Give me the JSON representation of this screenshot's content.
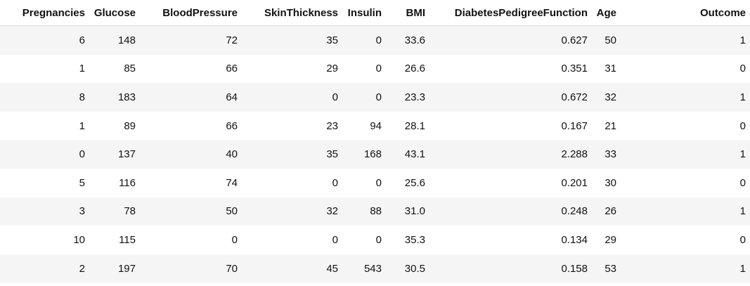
{
  "table": {
    "columns": [
      "Pregnancies",
      "Glucose",
      "BloodPressure",
      "SkinThickness",
      "Insulin",
      "BMI",
      "DiabetesPedigreeFunction",
      "Age",
      "Outcome"
    ],
    "rows": [
      [
        "6",
        "148",
        "72",
        "35",
        "0",
        "33.6",
        "0.627",
        "50",
        "1"
      ],
      [
        "1",
        "85",
        "66",
        "29",
        "0",
        "26.6",
        "0.351",
        "31",
        "0"
      ],
      [
        "8",
        "183",
        "64",
        "0",
        "0",
        "23.3",
        "0.672",
        "32",
        "1"
      ],
      [
        "1",
        "89",
        "66",
        "23",
        "94",
        "28.1",
        "0.167",
        "21",
        "0"
      ],
      [
        "0",
        "137",
        "40",
        "35",
        "168",
        "43.1",
        "2.288",
        "33",
        "1"
      ],
      [
        "5",
        "116",
        "74",
        "0",
        "0",
        "25.6",
        "0.201",
        "30",
        "0"
      ],
      [
        "3",
        "78",
        "50",
        "32",
        "88",
        "31.0",
        "0.248",
        "26",
        "1"
      ],
      [
        "10",
        "115",
        "0",
        "0",
        "0",
        "35.3",
        "0.134",
        "29",
        "0"
      ],
      [
        "2",
        "197",
        "70",
        "45",
        "543",
        "30.5",
        "0.158",
        "53",
        "1"
      ]
    ]
  }
}
